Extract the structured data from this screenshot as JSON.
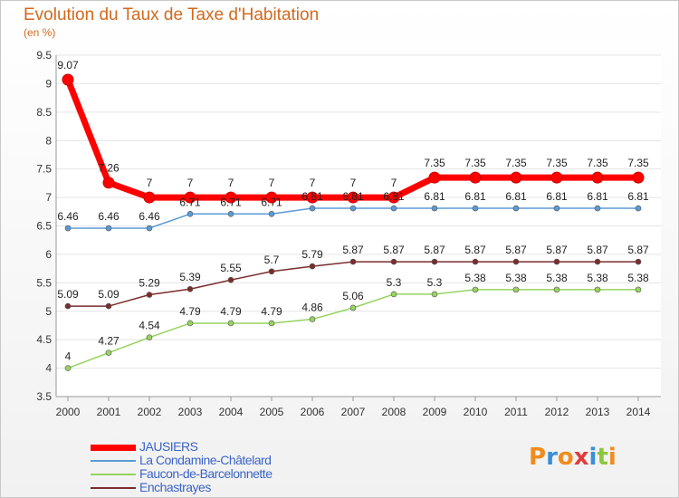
{
  "title": "Evolution du Taux de Taxe d'Habitation",
  "subtitle": "(en %)",
  "logo": {
    "text": "Proxiti",
    "colors": [
      "#f08c1e",
      "#3a8fd6",
      "#f08c1e",
      "#e03c3c",
      "#3a8fd6",
      "#8cc63e",
      "#f08c1e"
    ]
  },
  "chart_data": {
    "type": "line",
    "title": "Evolution du Taux de Taxe d'Habitation",
    "subtitle": "(en %)",
    "x": [
      "2000",
      "2001",
      "2002",
      "2003",
      "2004",
      "2005",
      "2006",
      "2007",
      "2008",
      "2009",
      "2010",
      "2011",
      "2012",
      "2013",
      "2014"
    ],
    "ylim": [
      3.5,
      9.5
    ],
    "yticks": [
      "3.5",
      "4",
      "4.5",
      "5",
      "5.5",
      "6",
      "6.5",
      "7",
      "7.5",
      "8",
      "8.5",
      "9",
      "9.5"
    ],
    "grid": "horizontal",
    "legend_position": "bottom-left",
    "series": [
      {
        "name": "JAUSIERS",
        "color": "#ff0000",
        "style": "thick",
        "values": [
          9.07,
          7.26,
          7,
          7,
          7,
          7,
          7,
          7,
          7,
          7.35,
          7.35,
          7.35,
          7.35,
          7.35,
          7.35
        ],
        "labels": [
          "9.07",
          "7.26",
          "7",
          "7",
          "7",
          "7",
          "7",
          "7",
          "7",
          "7.35",
          "7.35",
          "7.35",
          "7.35",
          "7.35",
          "7.35"
        ]
      },
      {
        "name": "La Condamine-Châtelard",
        "color": "#5b9bd5",
        "style": "thin",
        "values": [
          6.46,
          6.46,
          6.46,
          6.71,
          6.71,
          6.71,
          6.81,
          6.81,
          6.81,
          6.81,
          6.81,
          6.81,
          6.81,
          6.81,
          6.81
        ],
        "labels": [
          "6.46",
          "6.46",
          "6.46",
          "6.71",
          "6.71",
          "6.71",
          "6.81",
          "6.81",
          "6.81",
          "6.81",
          "6.81",
          "6.81",
          "6.81",
          "6.81",
          "6.81"
        ]
      },
      {
        "name": "Faucon-de-Barcelonnette",
        "color": "#96d35f",
        "style": "thin",
        "values": [
          4,
          4.27,
          4.54,
          4.79,
          4.79,
          4.79,
          4.86,
          5.06,
          5.3,
          5.3,
          5.38,
          5.38,
          5.38,
          5.38,
          5.38
        ],
        "labels": [
          "4",
          "4.27",
          "4.54",
          "4.79",
          "4.79",
          "4.79",
          "4.86",
          "5.06",
          "5.3",
          "5.3",
          "5.38",
          "5.38",
          "5.38",
          "5.38",
          "5.38"
        ]
      },
      {
        "name": "Enchastrayes",
        "color": "#7b2c2c",
        "style": "thin",
        "values": [
          5.09,
          5.09,
          5.29,
          5.39,
          5.55,
          5.7,
          5.79,
          5.87,
          5.87,
          5.87,
          5.87,
          5.87,
          5.87,
          5.87,
          5.87
        ],
        "labels": [
          "5.09",
          "5.09",
          "5.29",
          "5.39",
          "5.55",
          "5.7",
          "5.79",
          "5.87",
          "5.87",
          "5.87",
          "5.87",
          "5.87",
          "5.87",
          "5.87",
          "5.87"
        ]
      }
    ]
  }
}
